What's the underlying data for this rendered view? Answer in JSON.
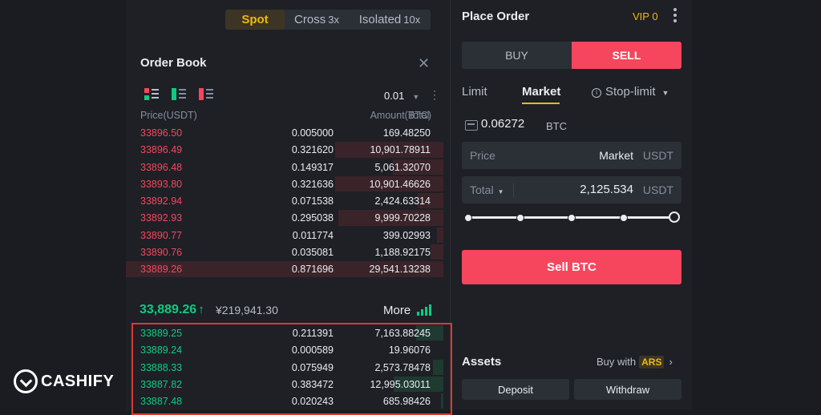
{
  "mode_tabs": [
    {
      "label": "Spot",
      "mult": ""
    },
    {
      "label": "Cross",
      "mult": "3x"
    },
    {
      "label": "Isolated",
      "mult": "10x"
    }
  ],
  "order_book": {
    "title": "Order Book",
    "precision": "0.01",
    "headers": {
      "price": "Price(USDT)",
      "amount": "Amount(BTC)",
      "total": "Total"
    },
    "asks": [
      {
        "price": "33896.50",
        "amount": "0.005000",
        "total": "169.48250",
        "depth": 0.0
      },
      {
        "price": "33896.49",
        "amount": "0.321620",
        "total": "10,901.78911",
        "depth": 0.34
      },
      {
        "price": "33896.48",
        "amount": "0.149317",
        "total": "5,061.32070",
        "depth": 0.16
      },
      {
        "price": "33893.80",
        "amount": "0.321636",
        "total": "10,901.46626",
        "depth": 0.34
      },
      {
        "price": "33892.94",
        "amount": "0.071538",
        "total": "2,424.63314",
        "depth": 0.08
      },
      {
        "price": "33892.93",
        "amount": "0.295038",
        "total": "9,999.70228",
        "depth": 0.33
      },
      {
        "price": "33890.77",
        "amount": "0.011774",
        "total": "399.02993",
        "depth": 0.02
      },
      {
        "price": "33890.76",
        "amount": "0.035081",
        "total": "1,188.92175",
        "depth": 0.04
      },
      {
        "price": "33889.26",
        "amount": "0.871696",
        "total": "29,541.13238",
        "depth": 1.0
      }
    ],
    "last_price": "33,889.26",
    "fiat_price": "¥219,941.30",
    "more_label": "More",
    "bids": [
      {
        "price": "33889.25",
        "amount": "0.211391",
        "total": "7,163.88245",
        "depth": 0.24
      },
      {
        "price": "33889.24",
        "amount": "0.000589",
        "total": "19.96076",
        "depth": 0.0
      },
      {
        "price": "33888.33",
        "amount": "0.075949",
        "total": "2,573.78478",
        "depth": 0.09
      },
      {
        "price": "33887.82",
        "amount": "0.383472",
        "total": "12,995.03011",
        "depth": 0.44
      },
      {
        "price": "33887.48",
        "amount": "0.020243",
        "total": "685.98426",
        "depth": 0.02
      }
    ]
  },
  "place_order": {
    "title": "Place Order",
    "vip": "VIP 0",
    "buy_label": "BUY",
    "sell_label": "SELL",
    "order_types": {
      "limit": "Limit",
      "market": "Market",
      "stop_limit": "Stop-limit"
    },
    "balance": "0.06272",
    "balance_unit": "BTC",
    "price_field": {
      "label": "Price",
      "value": "Market",
      "unit": "USDT"
    },
    "total_field": {
      "label": "Total",
      "value": "2,125.534",
      "unit": "USDT"
    },
    "slider_fraction": 1.0,
    "submit_label": "Sell BTC"
  },
  "assets": {
    "title": "Assets",
    "buy_with": "Buy with",
    "currency": "ARS",
    "deposit": "Deposit",
    "withdraw": "Withdraw"
  },
  "watermark": {
    "text": "CASHIFY"
  },
  "colors": {
    "ask": "#f6465d",
    "bid": "#0ecb81",
    "accent": "#f0b90b",
    "background": "#1e2026"
  }
}
